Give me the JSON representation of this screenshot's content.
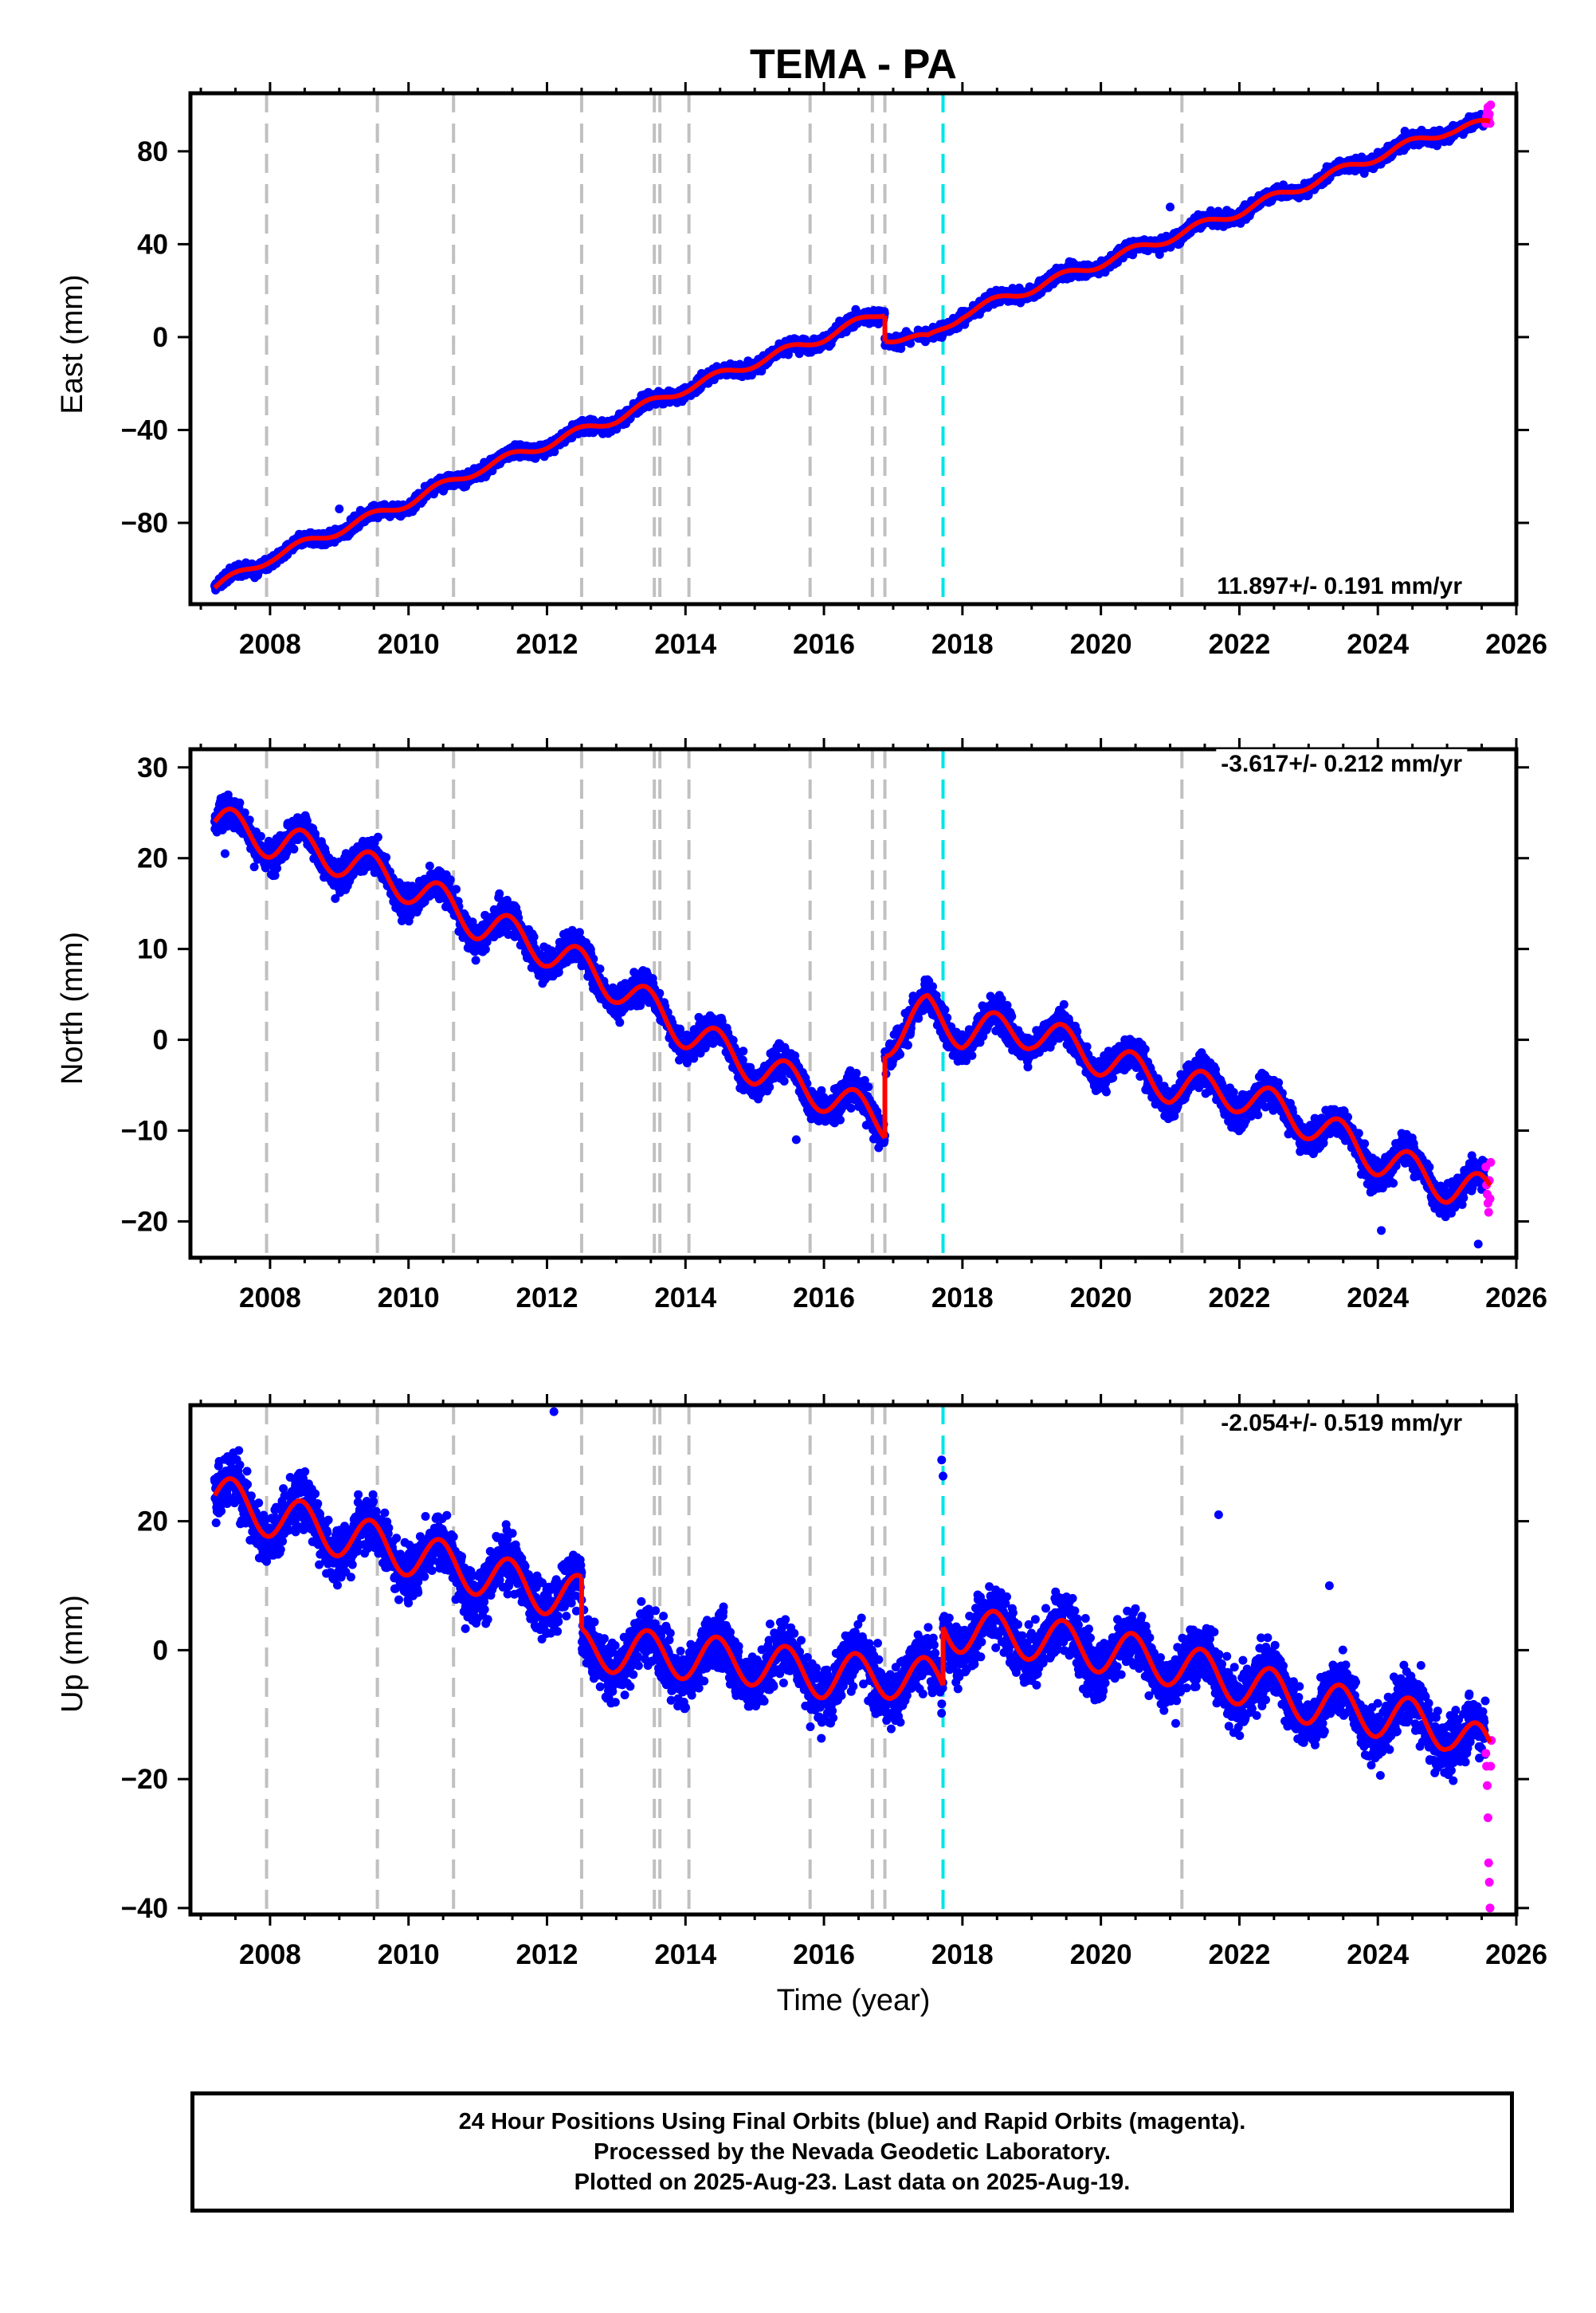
{
  "figure": {
    "title": "TEMA - PA",
    "xlabel": "Time (year)",
    "footer": [
      "24 Hour Positions Using Final Orbits (blue) and Rapid Orbits (magenta).",
      "Processed by the Nevada Geodetic Laboratory.",
      "Plotted on 2025-Aug-23. Last data on 2025-Aug-19."
    ],
    "colors": {
      "final_points": "#0000ff",
      "rapid_points": "#ff00ff",
      "model_line": "#ff0000",
      "event_lines": "#c0c0c0",
      "highlight_event_line": "#00e5e5"
    }
  },
  "chart_data": [
    {
      "type": "scatter",
      "component": "east",
      "ylabel": "East (mm)",
      "rate_label": "11.897+/- 0.191 mm/yr",
      "rate_position": "bottom-right",
      "xlim": [
        2006.85,
        2026.0
      ],
      "ylim": [
        -115,
        105
      ],
      "xticks": [
        2008,
        2010,
        2012,
        2014,
        2016,
        2018,
        2020,
        2022,
        2024,
        2026
      ],
      "yticks": [
        -80,
        -40,
        0,
        40,
        80
      ],
      "event_lines": [
        2007.95,
        2009.55,
        2010.65,
        2012.5,
        2013.55,
        2013.63,
        2014.05,
        2015.8,
        2016.7,
        2016.88,
        2021.17
      ],
      "highlight_event_line": 2017.72,
      "model": {
        "segments": [
          {
            "x": [
              2007.2,
              2008.0,
              2009.0,
              2010.0,
              2011.0,
              2012.0,
              2013.0,
              2014.0,
              2015.0,
              2016.0,
              2016.88
            ],
            "y": [
              -108,
              -95,
              -83,
              -71,
              -57,
              -46,
              -35,
              -22,
              -11,
              0,
              11
            ]
          },
          {
            "x": [
              2016.88,
              2017.5,
              2018.0,
              2019.0,
              2020.0,
              2021.0,
              2022.0,
              2023.0,
              2024.0,
              2025.0,
              2025.62
            ],
            "y": [
              0,
              -1,
              10,
              21,
              32,
              43,
              54,
              66,
              78,
              89,
              92
            ]
          }
        ],
        "seasonal_amplitude": 2.0
      },
      "final_points": {
        "count": 5200,
        "x_range": [
          2007.2,
          2025.55
        ],
        "scatter": 2.5,
        "outliers": [
          [
            2009.0,
            -74
          ],
          [
            2021.0,
            56
          ],
          [
            2013.7,
            -25
          ]
        ]
      },
      "rapid_points": {
        "x": [
          2025.56,
          2025.57,
          2025.58,
          2025.59,
          2025.6,
          2025.61,
          2025.62,
          2025.63
        ],
        "y": [
          92,
          95,
          97,
          99,
          94,
          96,
          92,
          100
        ]
      }
    },
    {
      "type": "scatter",
      "component": "north",
      "ylabel": "North (mm)",
      "rate_label": "-3.617+/- 0.212 mm/yr",
      "rate_position": "top-right",
      "xlim": [
        2006.85,
        2026.0
      ],
      "ylim": [
        -24,
        32
      ],
      "xticks": [
        2008,
        2010,
        2012,
        2014,
        2016,
        2018,
        2020,
        2022,
        2024,
        2026
      ],
      "yticks": [
        -20,
        -10,
        0,
        10,
        20,
        30
      ],
      "event_lines": [
        2007.95,
        2009.55,
        2010.65,
        2012.5,
        2013.55,
        2013.63,
        2014.05,
        2015.8,
        2016.7,
        2016.88,
        2021.17
      ],
      "highlight_event_line": 2017.72,
      "model": {
        "segments": [
          {
            "x": [
              2007.2,
              2008.0,
              2009.0,
              2010.0,
              2011.0,
              2012.0,
              2013.0,
              2014.0,
              2015.0,
              2016.0,
              2016.88
            ],
            "y": [
              24,
              22,
              20,
              17,
              13,
              10,
              6,
              1,
              -3,
              -6,
              -9
            ]
          },
          {
            "x": [
              2016.88,
              2017.5,
              2018.0,
              2019.0,
              2020.0,
              2021.0,
              2022.0,
              2023.0,
              2024.0,
              2025.0,
              2025.62
            ],
            "y": [
              0,
              3,
              1,
              1,
              -2,
              -5,
              -6,
              -9,
              -13,
              -16,
              -17
            ]
          }
        ],
        "seasonal_amplitude": 2.0
      },
      "final_points": {
        "count": 5200,
        "x_range": [
          2007.2,
          2025.55
        ],
        "scatter": 1.6,
        "outliers": [
          [
            2007.35,
            20.5
          ],
          [
            2024.05,
            -21
          ],
          [
            2025.45,
            -22.5
          ],
          [
            2015.6,
            -11
          ]
        ]
      },
      "rapid_points": {
        "x": [
          2025.56,
          2025.57,
          2025.58,
          2025.59,
          2025.6,
          2025.61,
          2025.62,
          2025.63
        ],
        "y": [
          -14,
          -16,
          -17,
          -18,
          -19,
          -15.5,
          -17.5,
          -13.5
        ]
      }
    },
    {
      "type": "scatter",
      "component": "up",
      "ylabel": "Up (mm)",
      "rate_label": "-2.054+/- 0.519 mm/yr",
      "rate_position": "top-right",
      "xlim": [
        2006.85,
        2026.0
      ],
      "ylim": [
        -41,
        38
      ],
      "xticks": [
        2008,
        2010,
        2012,
        2014,
        2016,
        2018,
        2020,
        2022,
        2024,
        2026
      ],
      "yticks": [
        -40,
        -20,
        0,
        20
      ],
      "event_lines": [
        2007.95,
        2009.55,
        2010.65,
        2012.5,
        2013.55,
        2013.63,
        2014.05,
        2015.8,
        2016.7,
        2016.88,
        2021.17
      ],
      "highlight_event_line": 2017.72,
      "model": {
        "segments": [
          {
            "x": [
              2007.2,
              2008.0,
              2009.0,
              2010.0,
              2011.0,
              2012.0,
              2012.5
            ],
            "y": [
              24,
              21,
              18,
              15,
              12,
              9,
              8
            ]
          },
          {
            "x": [
              2012.5,
              2013.0,
              2014.0,
              2015.0,
              2016.0,
              2017.0,
              2017.72
            ],
            "y": [
              0,
              0,
              -1,
              -2,
              -4,
              -4,
              -5
            ]
          },
          {
            "x": [
              2017.72,
              2018.0,
              2019.0,
              2020.0,
              2021.0,
              2022.0,
              2023.0,
              2024.0,
              2025.0,
              2025.62
            ],
            "y": [
              4,
              3,
              2,
              0,
              -2,
              -5,
              -8,
              -10,
              -12,
              -16
            ]
          }
        ],
        "seasonal_amplitude": 3.5
      },
      "final_points": {
        "count": 5200,
        "x_range": [
          2007.2,
          2025.55
        ],
        "scatter": 4.0,
        "outliers": [
          [
            2012.1,
            37
          ],
          [
            2017.7,
            29.5
          ],
          [
            2017.72,
            27
          ],
          [
            2021.7,
            21
          ],
          [
            2023.3,
            10
          ]
        ]
      },
      "rapid_points": {
        "x": [
          2025.56,
          2025.57,
          2025.58,
          2025.59,
          2025.6,
          2025.61,
          2025.62,
          2025.63,
          2025.64
        ],
        "y": [
          -16,
          -18,
          -21,
          -26,
          -33,
          -36,
          -40,
          -18,
          -14
        ]
      }
    }
  ]
}
